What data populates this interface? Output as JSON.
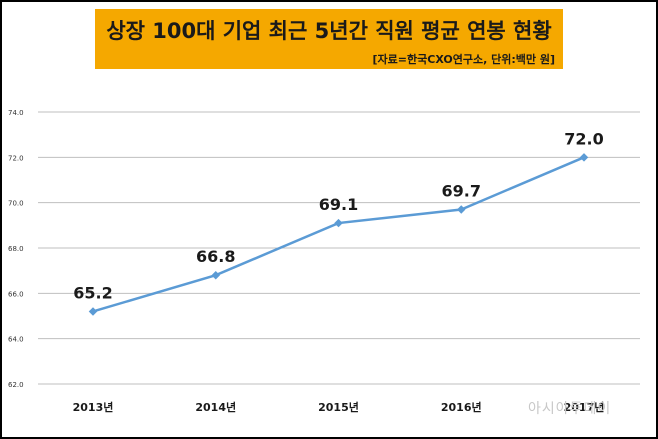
{
  "title": "상장 100대 기업 최근 5년간 직원 평균 연봉 현황",
  "subtitle": "[자료=한국CXO연구소, 단위:백만 원]",
  "watermark": "아시아투데이",
  "colors": {
    "title_bg": "#f5a800",
    "line": "#5b9bd5",
    "grid": "#bfbfbf"
  },
  "chart_data": {
    "type": "line",
    "categories": [
      "2013년",
      "2014년",
      "2015년",
      "2016년",
      "2017년"
    ],
    "values": [
      65.2,
      66.8,
      69.1,
      69.7,
      72.0
    ],
    "data_labels": [
      "65.2",
      "66.8",
      "69.1",
      "69.7",
      "72.0"
    ],
    "y_ticks": [
      "62.0",
      "64.0",
      "66.0",
      "68.0",
      "70.0",
      "72.0",
      "74.0"
    ],
    "ylim": [
      62,
      74
    ],
    "grid": true,
    "legend": "none"
  }
}
